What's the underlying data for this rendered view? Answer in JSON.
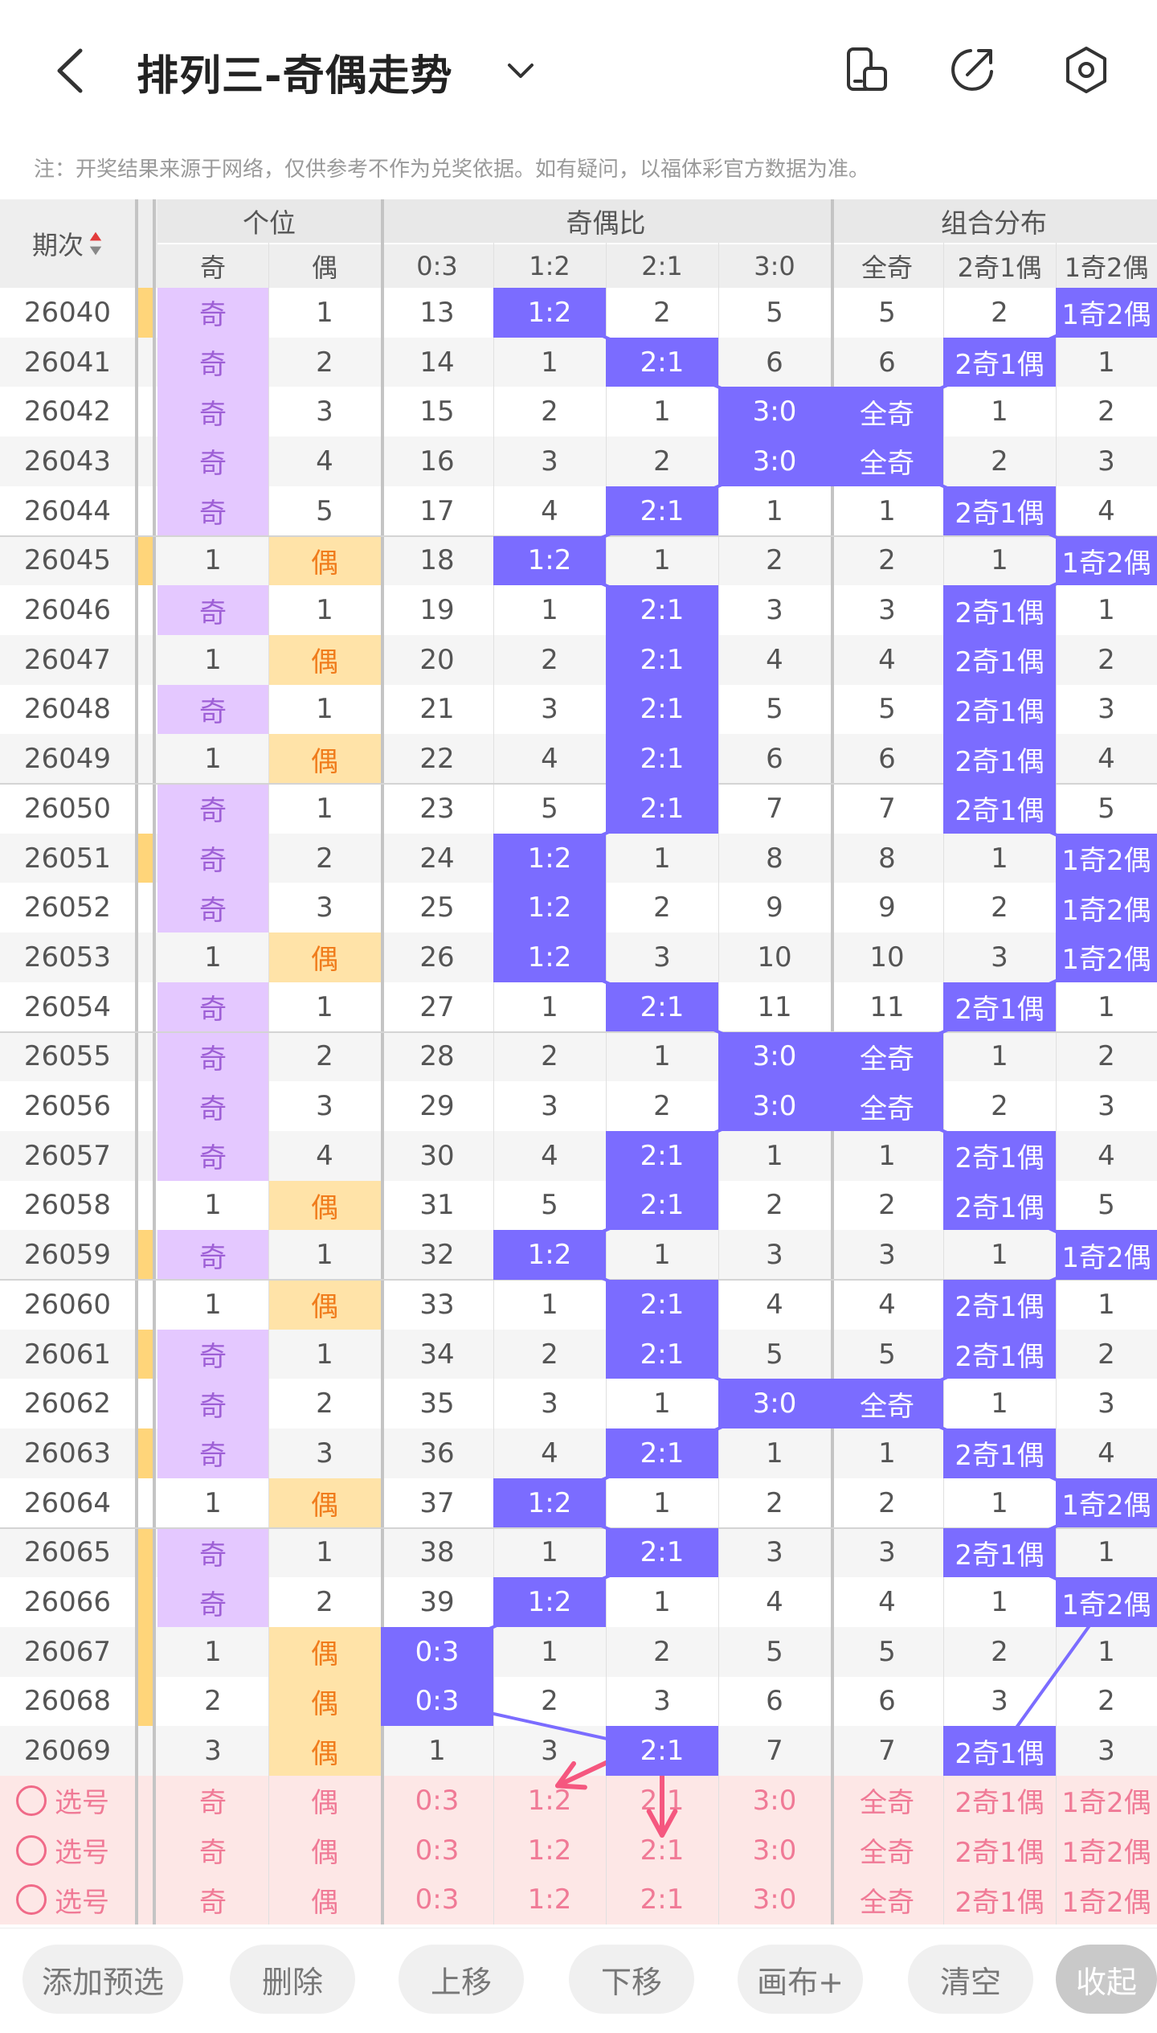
{
  "header": {
    "title": "排列三-奇偶走势",
    "notice": "注：开奖结果来源于网络，仅供参考不作为兑奖依据。如有疑问，以福体彩官方数据为准。"
  },
  "table": {
    "period_header": "期次",
    "group_headers": [
      "个位",
      "奇偶比",
      "组合分布"
    ],
    "sub_headers": [
      "奇",
      "偶",
      "0:3",
      "1:2",
      "2:1",
      "3:0",
      "全奇",
      "2奇1偶",
      "1奇2偶"
    ],
    "rows": [
      [
        "26040",
        "奇",
        "1",
        "13",
        "1:2",
        "2",
        "5",
        "5",
        "2",
        "1奇2偶"
      ],
      [
        "26041",
        "奇",
        "2",
        "14",
        "1",
        "2:1",
        "6",
        "6",
        "2奇1偶",
        "1"
      ],
      [
        "26042",
        "奇",
        "3",
        "15",
        "2",
        "1",
        "3:0",
        "全奇",
        "1",
        "2"
      ],
      [
        "26043",
        "奇",
        "4",
        "16",
        "3",
        "2",
        "3:0",
        "全奇",
        "2",
        "3"
      ],
      [
        "26044",
        "奇",
        "5",
        "17",
        "4",
        "2:1",
        "1",
        "1",
        "2奇1偶",
        "4"
      ],
      [
        "26045",
        "1",
        "偶",
        "18",
        "1:2",
        "1",
        "2",
        "2",
        "1",
        "1奇2偶"
      ],
      [
        "26046",
        "奇",
        "1",
        "19",
        "1",
        "2:1",
        "3",
        "3",
        "2奇1偶",
        "1"
      ],
      [
        "26047",
        "1",
        "偶",
        "20",
        "2",
        "2:1",
        "4",
        "4",
        "2奇1偶",
        "2"
      ],
      [
        "26048",
        "奇",
        "1",
        "21",
        "3",
        "2:1",
        "5",
        "5",
        "2奇1偶",
        "3"
      ],
      [
        "26049",
        "1",
        "偶",
        "22",
        "4",
        "2:1",
        "6",
        "6",
        "2奇1偶",
        "4"
      ],
      [
        "26050",
        "奇",
        "1",
        "23",
        "5",
        "2:1",
        "7",
        "7",
        "2奇1偶",
        "5"
      ],
      [
        "26051",
        "奇",
        "2",
        "24",
        "1:2",
        "1",
        "8",
        "8",
        "1",
        "1奇2偶"
      ],
      [
        "26052",
        "奇",
        "3",
        "25",
        "1:2",
        "2",
        "9",
        "9",
        "2",
        "1奇2偶"
      ],
      [
        "26053",
        "1",
        "偶",
        "26",
        "1:2",
        "3",
        "10",
        "10",
        "3",
        "1奇2偶"
      ],
      [
        "26054",
        "奇",
        "1",
        "27",
        "1",
        "2:1",
        "11",
        "11",
        "2奇1偶",
        "1"
      ],
      [
        "26055",
        "奇",
        "2",
        "28",
        "2",
        "1",
        "3:0",
        "全奇",
        "1",
        "2"
      ],
      [
        "26056",
        "奇",
        "3",
        "29",
        "3",
        "2",
        "3:0",
        "全奇",
        "2",
        "3"
      ],
      [
        "26057",
        "奇",
        "4",
        "30",
        "4",
        "2:1",
        "1",
        "1",
        "2奇1偶",
        "4"
      ],
      [
        "26058",
        "1",
        "偶",
        "31",
        "5",
        "2:1",
        "2",
        "2",
        "2奇1偶",
        "5"
      ],
      [
        "26059",
        "奇",
        "1",
        "32",
        "1:2",
        "1",
        "3",
        "3",
        "1",
        "1奇2偶"
      ],
      [
        "26060",
        "1",
        "偶",
        "33",
        "1",
        "2:1",
        "4",
        "4",
        "2奇1偶",
        "1"
      ],
      [
        "26061",
        "奇",
        "1",
        "34",
        "2",
        "2:1",
        "5",
        "5",
        "2奇1偶",
        "2"
      ],
      [
        "26062",
        "奇",
        "2",
        "35",
        "3",
        "1",
        "3:0",
        "全奇",
        "1",
        "3"
      ],
      [
        "26063",
        "奇",
        "3",
        "36",
        "4",
        "2:1",
        "1",
        "1",
        "2奇1偶",
        "4"
      ],
      [
        "26064",
        "1",
        "偶",
        "37",
        "1:2",
        "1",
        "2",
        "2",
        "1",
        "1奇2偶"
      ],
      [
        "26065",
        "奇",
        "1",
        "38",
        "1",
        "2:1",
        "3",
        "3",
        "2奇1偶",
        "1"
      ],
      [
        "26066",
        "奇",
        "2",
        "39",
        "1:2",
        "1",
        "4",
        "4",
        "1",
        "1奇2偶"
      ],
      [
        "26067",
        "1",
        "偶",
        "0:3",
        "1",
        "2",
        "5",
        "5",
        "2",
        "1"
      ],
      [
        "26068",
        "2",
        "偶",
        "0:3",
        "2",
        "3",
        "6",
        "6",
        "3",
        "2"
      ],
      [
        "26069",
        "3",
        "偶",
        "1",
        "3",
        "2:1",
        "7",
        "7",
        "2奇1偶",
        "3"
      ]
    ],
    "select_rows": [
      [
        "选号",
        "奇",
        "偶",
        "0:3",
        "1:2",
        "2:1",
        "3:0",
        "全奇",
        "2奇1偶",
        "1奇2偶"
      ],
      [
        "选号",
        "奇",
        "偶",
        "0:3",
        "1:2",
        "2:1",
        "3:0",
        "全奇",
        "2奇1偶",
        "1奇2偶"
      ],
      [
        "选号",
        "奇",
        "偶",
        "0:3",
        "1:2",
        "2:1",
        "3:0",
        "全奇",
        "2奇1偶",
        "1奇2偶"
      ]
    ]
  },
  "toolbar": [
    "添加预选",
    "删除",
    "上移",
    "下移",
    "画布+",
    "清空",
    "收起"
  ],
  "colors": {
    "accent": "#7b6cff",
    "odd_bg": "#e4c8ff",
    "odd_text": "#9e5fd6",
    "even_bg": "#ffe3a8",
    "even_text": "#f07c1c",
    "select_bg": "#fde7e6",
    "select_text": "#f07a96"
  }
}
